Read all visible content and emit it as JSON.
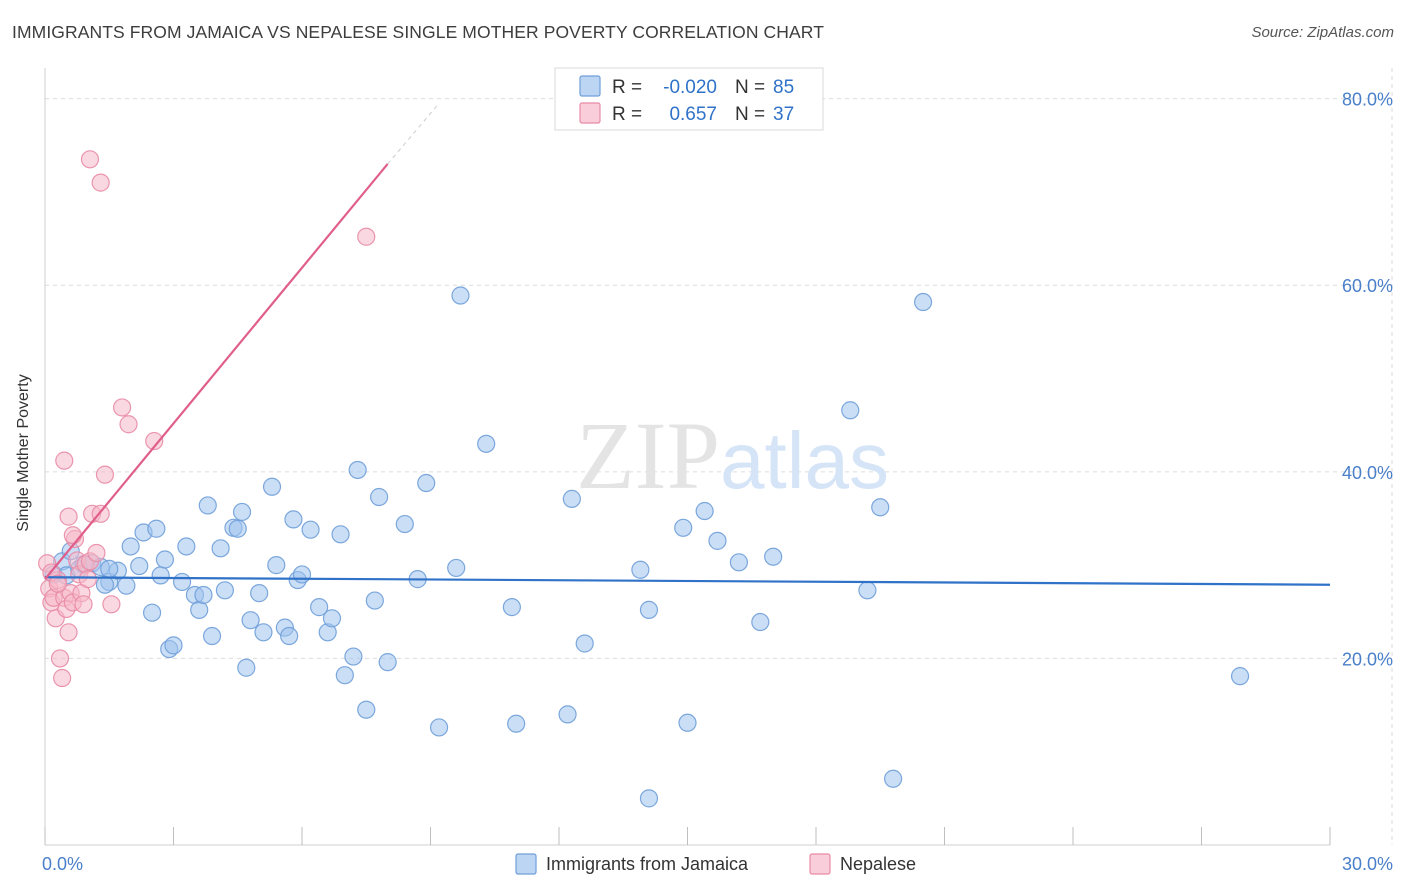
{
  "title": "IMMIGRANTS FROM JAMAICA VS NEPALESE SINGLE MOTHER POVERTY CORRELATION CHART",
  "source": "Source: ZipAtlas.com",
  "watermark": {
    "zip": "ZIP",
    "atlas": "atlas"
  },
  "colors": {
    "jamaica_fill": "#9ec3ee",
    "jamaica_stroke": "#6f9fd8",
    "jamaica_line": "#2f72c8",
    "nepalese_fill": "#f6b8c9",
    "nepalese_stroke": "#e88ba6",
    "nepalese_line": "#e05f8a",
    "axis_text": "#4a7fc9",
    "grid": "#dcdcdc"
  },
  "legend": {
    "rows": [
      {
        "r_label": "R =",
        "r_value": "-0.020",
        "n_label": "N =",
        "n_value": "85"
      },
      {
        "r_label": "R =",
        "r_value": "0.657",
        "n_label": "N =",
        "n_value": "37"
      }
    ]
  },
  "chart_data": {
    "type": "scatter",
    "title": "IMMIGRANTS FROM JAMAICA VS NEPALESE SINGLE MOTHER POVERTY CORRELATION CHART",
    "xlabel": "",
    "ylabel": "Single Mother Poverty",
    "xlim": [
      0,
      30
    ],
    "ylim": [
      0,
      82
    ],
    "x_tick_labels": [
      {
        "value": 0,
        "label": "0.0%"
      },
      {
        "value": 30,
        "label": "30.0%"
      }
    ],
    "y_tick_labels": [
      {
        "value": 20,
        "label": "20.0%"
      },
      {
        "value": 40,
        "label": "40.0%"
      },
      {
        "value": 60,
        "label": "60.0%"
      },
      {
        "value": 80,
        "label": "80.0%"
      }
    ],
    "legend_position": "bottom-center",
    "series": [
      {
        "name": "Immigrants from Jamaica",
        "trend": {
          "x": [
            0,
            30
          ],
          "y": [
            28.7,
            27.9
          ]
        },
        "points": [
          [
            0.2,
            29.0
          ],
          [
            0.4,
            30.4
          ],
          [
            0.5,
            28.9
          ],
          [
            0.6,
            31.5
          ],
          [
            0.8,
            29.6
          ],
          [
            0.9,
            30.1
          ],
          [
            1.1,
            30.2
          ],
          [
            1.3,
            29.8
          ],
          [
            1.5,
            28.2
          ],
          [
            1.4,
            27.9
          ],
          [
            1.7,
            29.4
          ],
          [
            1.9,
            27.8
          ],
          [
            2.0,
            32.0
          ],
          [
            2.2,
            29.9
          ],
          [
            2.3,
            33.5
          ],
          [
            2.5,
            24.9
          ],
          [
            2.6,
            33.9
          ],
          [
            2.7,
            28.9
          ],
          [
            2.8,
            30.6
          ],
          [
            2.9,
            21.0
          ],
          [
            3.0,
            21.4
          ],
          [
            3.2,
            28.2
          ],
          [
            3.3,
            32.0
          ],
          [
            3.5,
            26.8
          ],
          [
            3.6,
            25.2
          ],
          [
            3.7,
            26.8
          ],
          [
            3.8,
            36.4
          ],
          [
            3.9,
            22.4
          ],
          [
            4.1,
            31.8
          ],
          [
            4.2,
            27.3
          ],
          [
            4.4,
            34.0
          ],
          [
            4.5,
            33.9
          ],
          [
            4.6,
            35.7
          ],
          [
            4.7,
            19.0
          ],
          [
            4.8,
            24.1
          ],
          [
            5.0,
            27.0
          ],
          [
            5.1,
            22.8
          ],
          [
            5.3,
            38.4
          ],
          [
            5.4,
            30.0
          ],
          [
            5.6,
            23.3
          ],
          [
            5.7,
            22.4
          ],
          [
            5.8,
            34.9
          ],
          [
            5.9,
            28.4
          ],
          [
            6.0,
            29.0
          ],
          [
            6.2,
            33.8
          ],
          [
            6.4,
            25.5
          ],
          [
            6.6,
            22.8
          ],
          [
            6.7,
            24.3
          ],
          [
            6.9,
            33.3
          ],
          [
            7.0,
            18.2
          ],
          [
            7.2,
            20.2
          ],
          [
            7.3,
            40.2
          ],
          [
            7.5,
            14.5
          ],
          [
            7.7,
            26.2
          ],
          [
            7.8,
            37.3
          ],
          [
            8.0,
            19.6
          ],
          [
            8.4,
            34.4
          ],
          [
            8.7,
            28.5
          ],
          [
            8.9,
            38.8
          ],
          [
            9.2,
            12.6
          ],
          [
            9.6,
            29.7
          ],
          [
            9.7,
            58.9
          ],
          [
            10.3,
            43.0
          ],
          [
            10.9,
            25.5
          ],
          [
            11.0,
            13.0
          ],
          [
            12.2,
            14.0
          ],
          [
            12.3,
            37.1
          ],
          [
            12.6,
            21.6
          ],
          [
            13.9,
            29.5
          ],
          [
            14.1,
            5.0
          ],
          [
            14.1,
            25.2
          ],
          [
            14.9,
            34.0
          ],
          [
            15.0,
            13.1
          ],
          [
            15.4,
            35.8
          ],
          [
            15.7,
            32.6
          ],
          [
            16.2,
            30.3
          ],
          [
            16.7,
            23.9
          ],
          [
            17.0,
            30.9
          ],
          [
            18.8,
            46.6
          ],
          [
            19.2,
            27.3
          ],
          [
            19.5,
            36.2
          ],
          [
            19.8,
            7.1
          ],
          [
            20.5,
            58.2
          ],
          [
            27.9,
            18.1
          ],
          [
            1.5,
            29.6
          ]
        ]
      },
      {
        "name": "Nepalese",
        "trend": {
          "x": [
            0,
            8.0
          ],
          "y": [
            28.5,
            73.0
          ],
          "dashed_to": {
            "x": 9.2,
            "y": 79.5
          }
        },
        "points": [
          [
            0.05,
            30.2
          ],
          [
            0.1,
            27.5
          ],
          [
            0.15,
            26.0
          ],
          [
            0.2,
            26.5
          ],
          [
            0.25,
            24.3
          ],
          [
            0.3,
            28.4
          ],
          [
            0.35,
            20.0
          ],
          [
            0.4,
            17.9
          ],
          [
            0.45,
            26.5
          ],
          [
            0.5,
            25.3
          ],
          [
            0.55,
            22.8
          ],
          [
            0.6,
            27.0
          ],
          [
            0.65,
            26.0
          ],
          [
            0.7,
            32.8
          ],
          [
            0.75,
            30.5
          ],
          [
            0.8,
            29.0
          ],
          [
            0.85,
            27.0
          ],
          [
            0.9,
            25.8
          ],
          [
            0.95,
            30.1
          ],
          [
            1.0,
            28.5
          ],
          [
            1.05,
            30.4
          ],
          [
            1.1,
            35.5
          ],
          [
            1.2,
            31.3
          ],
          [
            1.3,
            35.5
          ],
          [
            1.4,
            39.7
          ],
          [
            1.55,
            25.8
          ],
          [
            1.8,
            46.9
          ],
          [
            1.95,
            45.1
          ],
          [
            2.55,
            43.3
          ],
          [
            0.45,
            41.2
          ],
          [
            0.55,
            35.2
          ],
          [
            0.65,
            33.2
          ],
          [
            1.05,
            73.5
          ],
          [
            1.3,
            71.0
          ],
          [
            7.5,
            65.2
          ],
          [
            0.15,
            29.2
          ],
          [
            0.3,
            28.0
          ]
        ]
      }
    ]
  }
}
